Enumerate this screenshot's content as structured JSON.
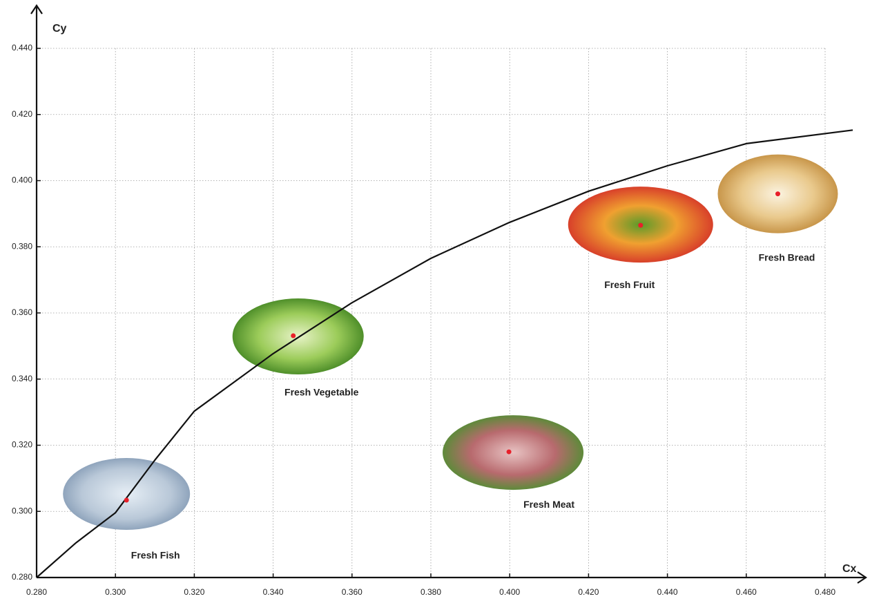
{
  "chart_data": {
    "type": "scatter",
    "x_label": "Cx",
    "y_label": "Cy",
    "xlim": [
      0.28,
      0.48
    ],
    "ylim": [
      0.28,
      0.44
    ],
    "xticks": [
      {
        "value": 0.28,
        "label": "0.280"
      },
      {
        "value": 0.3,
        "label": "0.300"
      },
      {
        "value": 0.32,
        "label": "0.320"
      },
      {
        "value": 0.34,
        "label": "0.340"
      },
      {
        "value": 0.36,
        "label": "0.360"
      },
      {
        "value": 0.38,
        "label": "0.380"
      },
      {
        "value": 0.4,
        "label": "0.400"
      },
      {
        "value": 0.42,
        "label": "0.420"
      },
      {
        "value": 0.44,
        "label": "0.440"
      },
      {
        "value": 0.46,
        "label": "0.460"
      },
      {
        "value": 0.48,
        "label": "0.480"
      }
    ],
    "yticks": [
      {
        "value": 0.28,
        "label": "0.280"
      },
      {
        "value": 0.3,
        "label": "0.300"
      },
      {
        "value": 0.32,
        "label": "0.320"
      },
      {
        "value": 0.34,
        "label": "0.340"
      },
      {
        "value": 0.36,
        "label": "0.360"
      },
      {
        "value": 0.38,
        "label": "0.380"
      },
      {
        "value": 0.4,
        "label": "0.400"
      },
      {
        "value": 0.42,
        "label": "0.420"
      },
      {
        "value": 0.44,
        "label": "0.440"
      }
    ],
    "grid": true,
    "points": {
      "labels": [
        "Fresh Fish",
        "Fresh Vegetable",
        "Fresh Meat",
        "Fresh Fruit",
        "Fresh Bread"
      ],
      "x": [
        0.3028,
        0.3451,
        0.3998,
        0.4332,
        0.468
      ],
      "y": [
        0.3034,
        0.3531,
        0.318,
        0.3865,
        0.396
      ],
      "color": "#e8202a"
    },
    "curve": {
      "x": [
        0.28,
        0.29,
        0.3,
        0.31,
        0.32,
        0.34,
        0.36,
        0.38,
        0.4,
        0.42,
        0.44,
        0.46,
        0.487
      ],
      "y": [
        0.28,
        0.2905,
        0.2996,
        0.3155,
        0.3303,
        0.3477,
        0.3631,
        0.3765,
        0.3874,
        0.3968,
        0.4045,
        0.4112,
        0.4153
      ],
      "color": "#111111"
    }
  }
}
